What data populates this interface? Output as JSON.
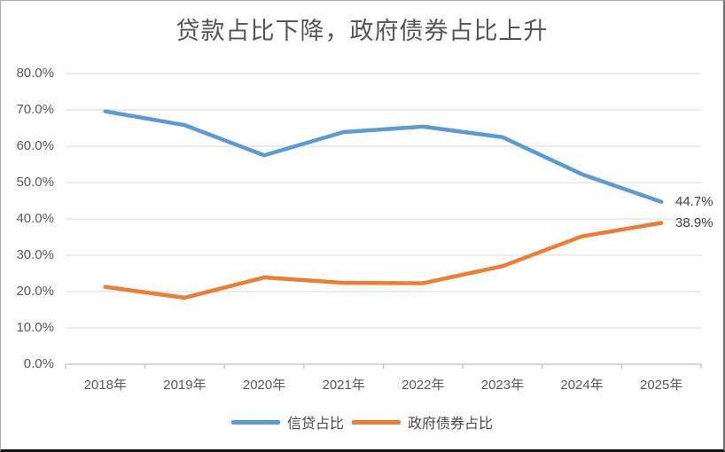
{
  "title": "贷款占比下降，政府债券占比上升",
  "colors": {
    "credit_line": "#5B9BD5",
    "govbond_line": "#ED7D31",
    "gridline": "#D9D9D9",
    "axis_line": "#BFBFBF",
    "tick_label": "#595959",
    "data_label": "#3F3F3F",
    "title_text": "#555555"
  },
  "chart_data": {
    "type": "line",
    "title": "贷款占比下降，政府债券占比上升",
    "categories": [
      "2018年",
      "2019年",
      "2020年",
      "2021年",
      "2022年",
      "2023年",
      "2024年",
      "2025年"
    ],
    "series": [
      {
        "name": "信贷占比",
        "color": "#5B9BD5",
        "values": [
          69.6,
          65.8,
          57.5,
          63.9,
          65.4,
          62.5,
          52.3,
          44.7
        ],
        "end_label": "44.7%"
      },
      {
        "name": "政府债券占比",
        "color": "#ED7D31",
        "values": [
          21.3,
          18.3,
          23.9,
          22.4,
          22.3,
          27.0,
          35.2,
          38.9
        ],
        "end_label": "38.9%"
      }
    ],
    "xlabel": "",
    "ylabel": "",
    "ylim": [
      0,
      80
    ],
    "ytick_step": 10,
    "ytick_labels": [
      "0.0%",
      "10.0%",
      "20.0%",
      "30.0%",
      "40.0%",
      "50.0%",
      "60.0%",
      "70.0%",
      "80.0%"
    ],
    "grid": true,
    "legend_position": "bottom"
  }
}
